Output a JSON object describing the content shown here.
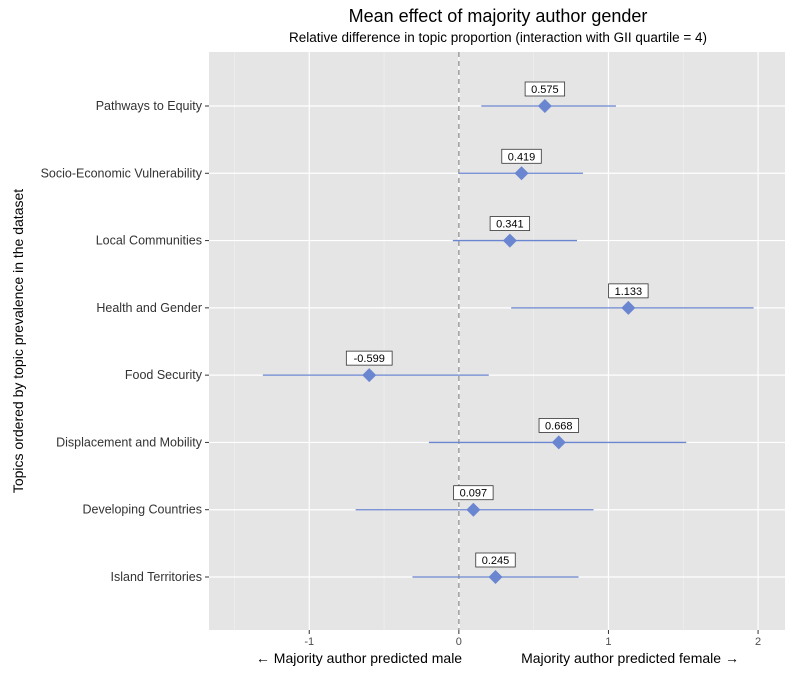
{
  "chart_data": {
    "type": "scatter",
    "title": "Mean effect of majority author gender",
    "subtitle": "Relative difference in topic proportion (interaction with GII quartile = 4)",
    "ylabel": "Topics ordered by topic prevalence in the dataset",
    "bottom_captions": {
      "left": "← Majority author predicted male",
      "right": "Majority author predicted female →"
    },
    "xlim": [
      -1.67,
      2.18
    ],
    "x_ticks": [
      -1,
      0,
      1,
      2
    ],
    "x_tick_labels": [
      "-1",
      "0",
      "1",
      "2"
    ],
    "reference_line_x": 0,
    "grid": true,
    "colors": {
      "panel": "#e5e5e5",
      "grid_major": "#ffffff",
      "grid_minor": "#f2f2f2",
      "marker": "#6b86d1",
      "errorbar": "#6b86d1",
      "reference_line": "#8c8c8c"
    },
    "marker_shape": "diamond",
    "points": [
      {
        "topic": "Pathways to Equity",
        "estimate": 0.575,
        "label": "0.575",
        "ci": [
          0.15,
          1.05
        ]
      },
      {
        "topic": "Socio-Economic Vulnerability",
        "estimate": 0.419,
        "label": "0.419",
        "ci": [
          0.0,
          0.83
        ]
      },
      {
        "topic": "Local Communities",
        "estimate": 0.341,
        "label": "0.341",
        "ci": [
          -0.04,
          0.79
        ]
      },
      {
        "topic": "Health and Gender",
        "estimate": 1.133,
        "label": "1.133",
        "ci": [
          0.35,
          1.97
        ]
      },
      {
        "topic": "Food Security",
        "estimate": -0.599,
        "label": "-0.599",
        "ci": [
          -1.31,
          0.2
        ]
      },
      {
        "topic": "Displacement and Mobility",
        "estimate": 0.668,
        "label": "0.668",
        "ci": [
          -0.2,
          1.52
        ]
      },
      {
        "topic": "Developing Countries",
        "estimate": 0.097,
        "label": "0.097",
        "ci": [
          -0.69,
          0.9
        ]
      },
      {
        "topic": "Island Territories",
        "estimate": 0.245,
        "label": "0.245",
        "ci": [
          -0.31,
          0.8
        ]
      }
    ]
  }
}
